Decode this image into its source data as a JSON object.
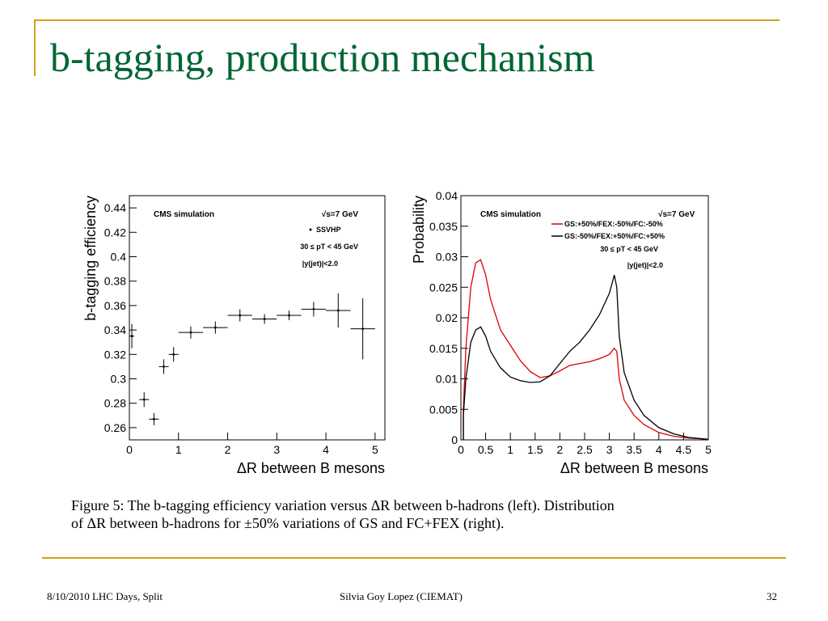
{
  "slide": {
    "title": "b-tagging, production mechanism",
    "caption_line1": "Figure 5:  The b-tagging efficiency variation versus ΔR between b-hadrons (left).  Distribution",
    "caption_line2": "of ΔR between b-hadrons for ±50% variations of GS and FC+FEX (right).",
    "footer_left": "8/10/2010 LHC Days, Split",
    "footer_center": "Silvia Goy Lopez (CIEMAT)",
    "footer_right": "32",
    "accent_color": "#D4A017",
    "title_color": "#006633"
  },
  "chart_data": [
    {
      "type": "scatter",
      "ylabel": "b-tagging efficiency",
      "xlabel": "ΔR between B mesons",
      "xlim": [
        0,
        5.2
      ],
      "ylim": [
        0.25,
        0.45
      ],
      "xticks": [
        "0",
        "1",
        "2",
        "3",
        "4",
        "5"
      ],
      "xtick_values": [
        0,
        1,
        2,
        3,
        4,
        5
      ],
      "yticks": [
        "0.26",
        "0.28",
        "0.3",
        "0.32",
        "0.34",
        "0.36",
        "0.38",
        "0.4",
        "0.42",
        "0.44"
      ],
      "ytick_values": [
        0.26,
        0.28,
        0.3,
        0.32,
        0.34,
        0.36,
        0.38,
        0.4,
        0.42,
        0.44
      ],
      "annotations": [
        "CMS simulation",
        "√s=7 GeV",
        "SSVHP",
        "30 ≤ pT < 45 GeV",
        "|y(jet)|<2.0"
      ],
      "points": [
        {
          "x": 0.05,
          "y": 0.335,
          "xerr": 0.05,
          "yerr": 0.01
        },
        {
          "x": 0.3,
          "y": 0.283,
          "xerr": 0.1,
          "yerr": 0.006
        },
        {
          "x": 0.5,
          "y": 0.267,
          "xerr": 0.1,
          "yerr": 0.005
        },
        {
          "x": 0.7,
          "y": 0.31,
          "xerr": 0.1,
          "yerr": 0.006
        },
        {
          "x": 0.9,
          "y": 0.32,
          "xerr": 0.1,
          "yerr": 0.006
        },
        {
          "x": 1.25,
          "y": 0.338,
          "xerr": 0.25,
          "yerr": 0.005
        },
        {
          "x": 1.75,
          "y": 0.342,
          "xerr": 0.25,
          "yerr": 0.005
        },
        {
          "x": 2.25,
          "y": 0.352,
          "xerr": 0.25,
          "yerr": 0.005
        },
        {
          "x": 2.75,
          "y": 0.349,
          "xerr": 0.25,
          "yerr": 0.004
        },
        {
          "x": 3.25,
          "y": 0.352,
          "xerr": 0.25,
          "yerr": 0.004
        },
        {
          "x": 3.75,
          "y": 0.357,
          "xerr": 0.25,
          "yerr": 0.006
        },
        {
          "x": 4.25,
          "y": 0.356,
          "xerr": 0.25,
          "yerr": 0.014
        },
        {
          "x": 4.75,
          "y": 0.341,
          "xerr": 0.25,
          "yerr": 0.025
        }
      ]
    },
    {
      "type": "line",
      "ylabel": "Probability",
      "xlabel": "ΔR between B mesons",
      "xlim": [
        0,
        5
      ],
      "ylim": [
        0,
        0.04
      ],
      "xticks": [
        "0",
        "0.5",
        "1",
        "1.5",
        "2",
        "2.5",
        "3",
        "3.5",
        "4",
        "4.5",
        "5"
      ],
      "xtick_values": [
        0,
        0.5,
        1,
        1.5,
        2,
        2.5,
        3,
        3.5,
        4,
        4.5,
        5
      ],
      "yticks": [
        "0",
        "0.005",
        "0.01",
        "0.015",
        "0.02",
        "0.025",
        "0.03",
        "0.035",
        "0.04"
      ],
      "ytick_values": [
        0,
        0.005,
        0.01,
        0.015,
        0.02,
        0.025,
        0.03,
        0.035,
        0.04
      ],
      "annotations": [
        "CMS simulation",
        "√s=7 GeV",
        "30 ≤ pT < 45 GeV",
        "|y(jet)|<2.0"
      ],
      "series": [
        {
          "name": "GS:+50%/FEX:-50%/FC:-50%",
          "color": "#dd0000",
          "x": [
            0.05,
            0.1,
            0.2,
            0.3,
            0.4,
            0.5,
            0.6,
            0.8,
            1.0,
            1.2,
            1.4,
            1.6,
            1.8,
            2.0,
            2.2,
            2.4,
            2.6,
            2.8,
            3.0,
            3.1,
            3.15,
            3.2,
            3.3,
            3.5,
            3.7,
            4.0,
            4.3,
            4.6,
            5.0
          ],
          "y": [
            0.005,
            0.015,
            0.025,
            0.029,
            0.0295,
            0.027,
            0.023,
            0.018,
            0.0155,
            0.013,
            0.0112,
            0.0102,
            0.0105,
            0.0113,
            0.0122,
            0.0125,
            0.0128,
            0.0133,
            0.014,
            0.015,
            0.0145,
            0.01,
            0.0065,
            0.004,
            0.0025,
            0.0012,
            0.0006,
            0.0003,
            0.0001
          ]
        },
        {
          "name": "GS:-50%/FEX:+50%/FC:+50%",
          "color": "#000000",
          "x": [
            0.05,
            0.1,
            0.2,
            0.3,
            0.4,
            0.5,
            0.6,
            0.8,
            1.0,
            1.2,
            1.4,
            1.6,
            1.8,
            2.0,
            2.2,
            2.4,
            2.6,
            2.8,
            3.0,
            3.1,
            3.15,
            3.2,
            3.3,
            3.5,
            3.7,
            4.0,
            4.3,
            4.6,
            5.0
          ],
          "y": [
            0.004,
            0.01,
            0.016,
            0.018,
            0.0185,
            0.017,
            0.0145,
            0.0118,
            0.0103,
            0.0097,
            0.0094,
            0.0095,
            0.0105,
            0.0125,
            0.0145,
            0.016,
            0.018,
            0.0205,
            0.024,
            0.027,
            0.025,
            0.017,
            0.011,
            0.0065,
            0.004,
            0.002,
            0.001,
            0.0004,
            0.0001
          ]
        }
      ]
    }
  ]
}
